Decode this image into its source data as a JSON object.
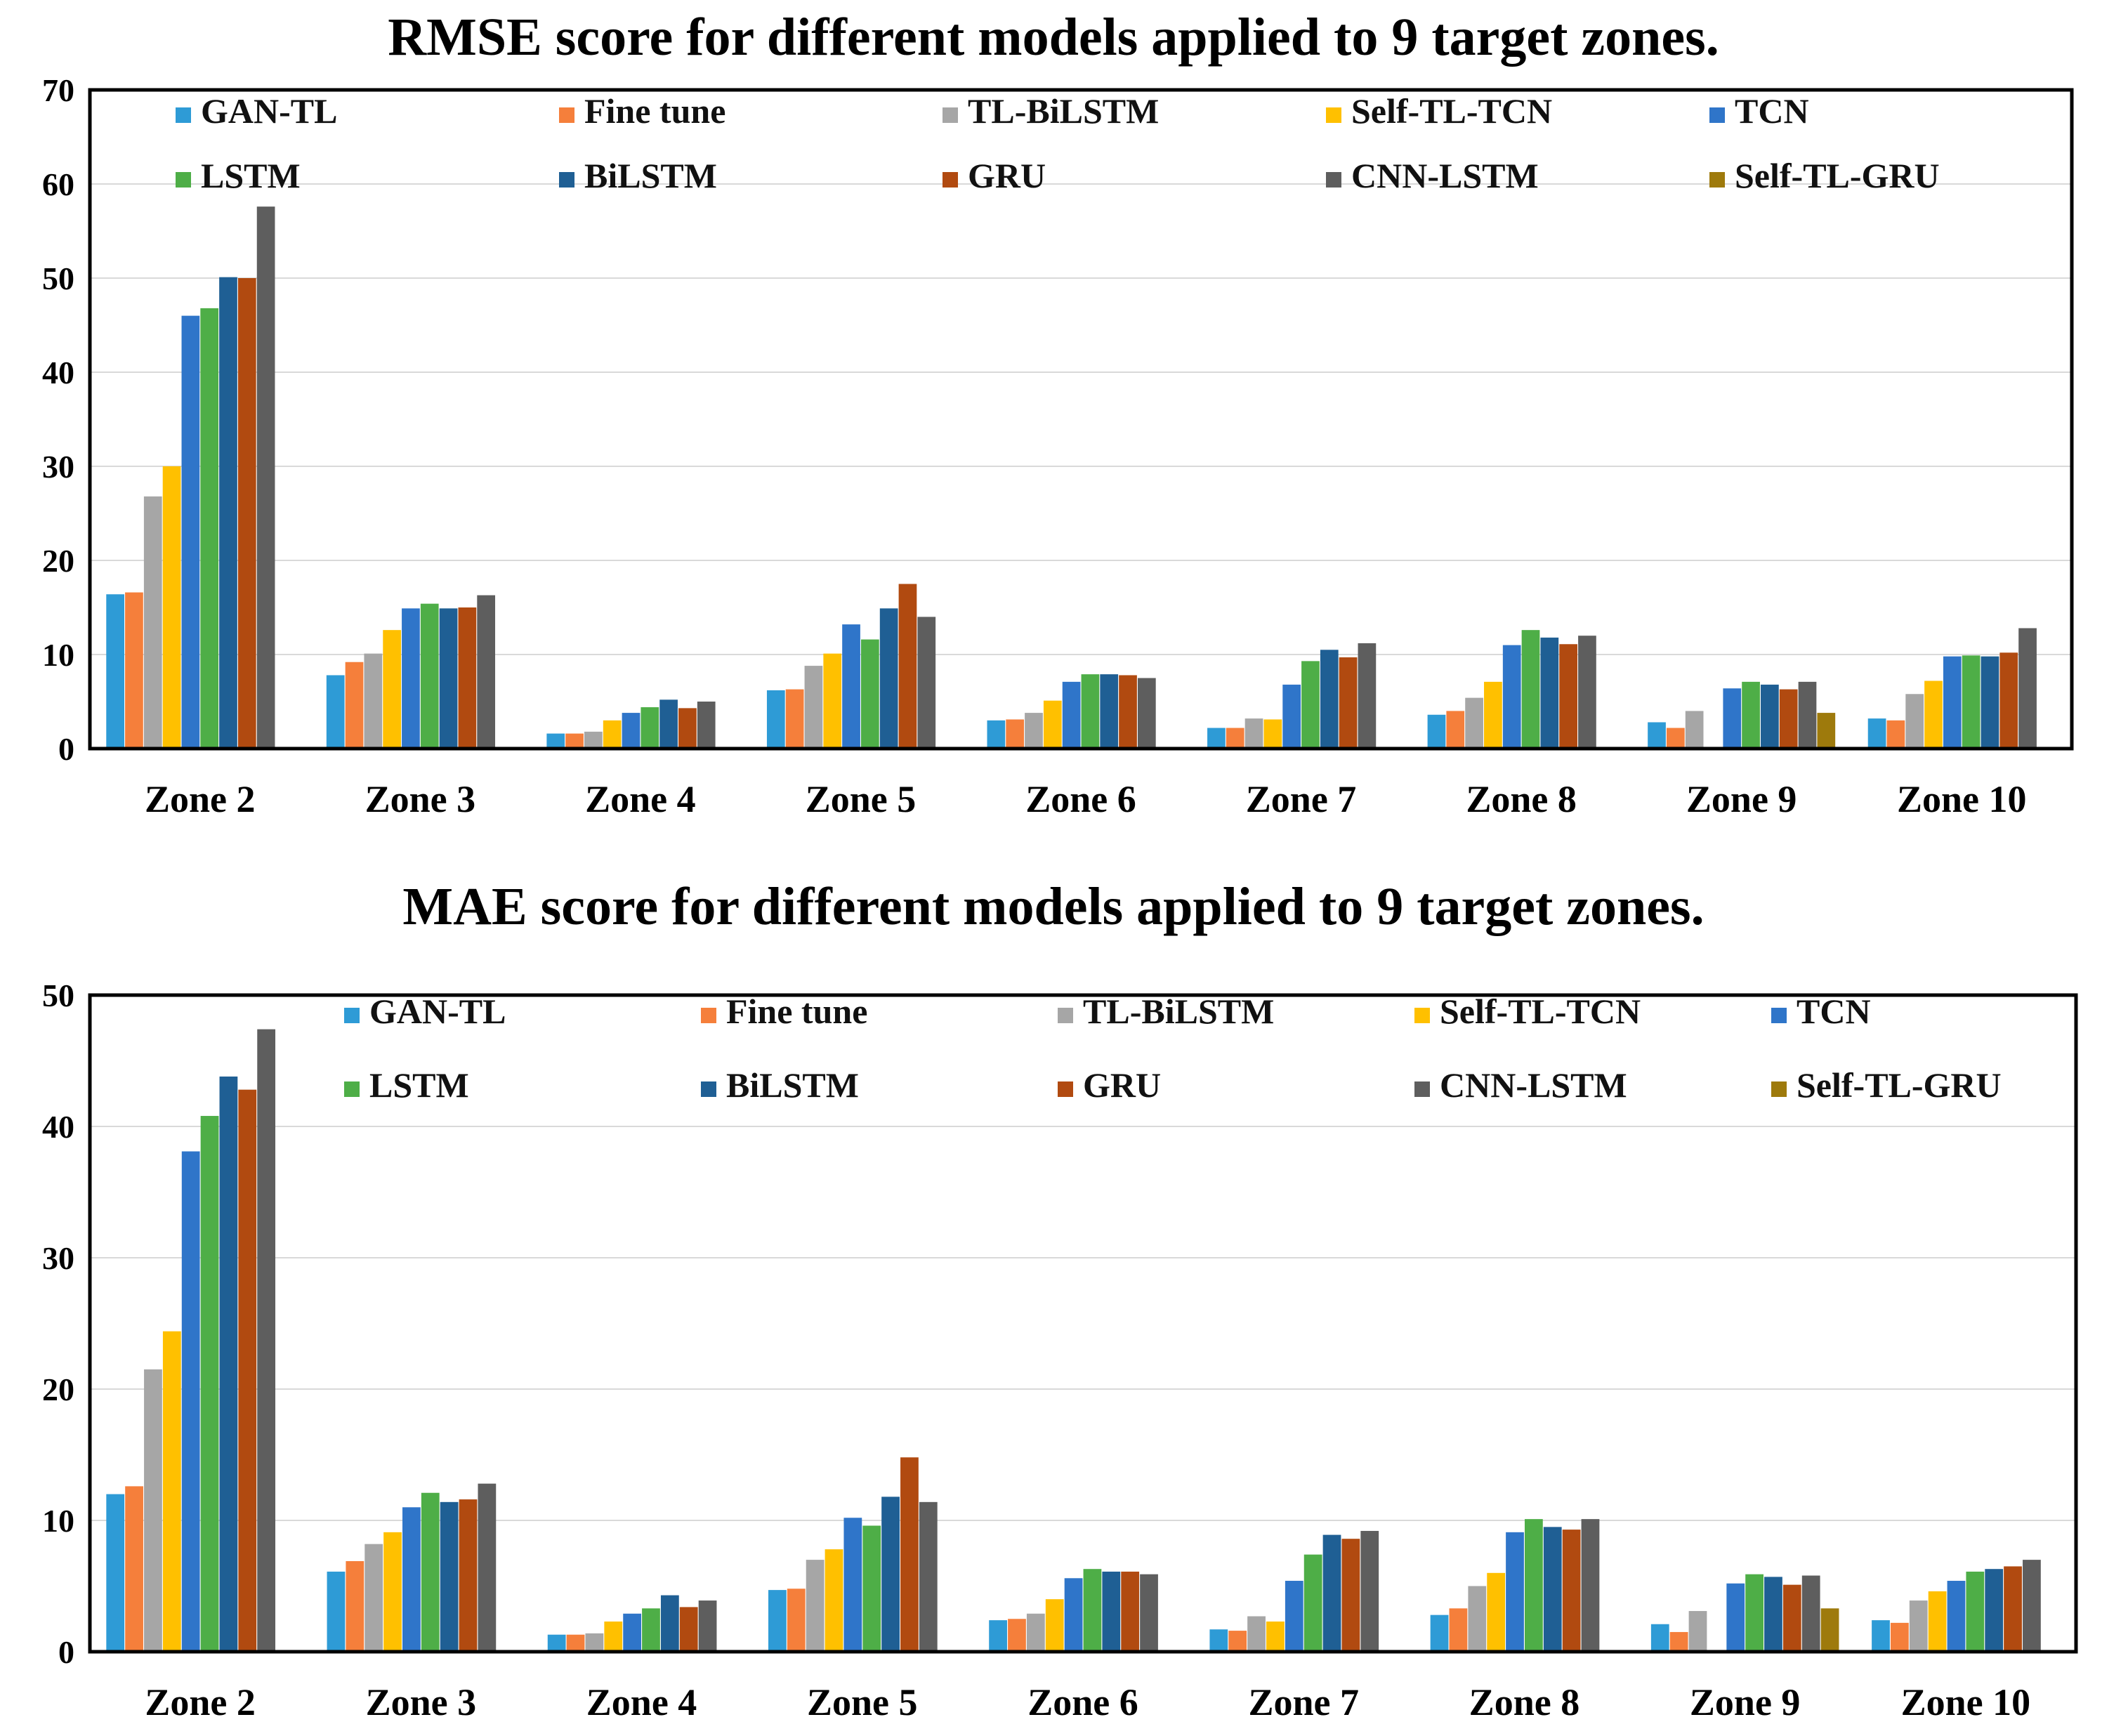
{
  "chart_data": [
    {
      "type": "bar",
      "title": "RMSE score for different models applied to 9 target zones.",
      "xlabel": "",
      "ylabel": "",
      "ylim": [
        0,
        70
      ],
      "yticks": [
        0,
        10,
        20,
        30,
        40,
        50,
        60,
        70
      ],
      "grid": true,
      "legend_position": "top (inside plot, 2 rows)",
      "categories": [
        "Zone 2",
        "Zone 3",
        "Zone 4",
        "Zone 5",
        "Zone 6",
        "Zone 7",
        "Zone 8",
        "Zone 9",
        "Zone 10"
      ],
      "series": [
        {
          "name": "GAN-TL",
          "color": "#2E9BD6",
          "values": [
            16.4,
            7.8,
            1.6,
            6.2,
            3.0,
            2.2,
            3.6,
            2.8,
            3.2
          ]
        },
        {
          "name": "Fine tune",
          "color": "#F57F3B",
          "values": [
            16.6,
            9.2,
            1.6,
            6.3,
            3.1,
            2.2,
            4.0,
            2.2,
            3.0
          ]
        },
        {
          "name": "TL-BiLSTM",
          "color": "#A6A6A6",
          "values": [
            26.8,
            10.1,
            1.8,
            8.8,
            3.8,
            3.2,
            5.4,
            4.0,
            5.8
          ]
        },
        {
          "name": "Self-TL-TCN",
          "color": "#FFC000",
          "values": [
            30.0,
            12.6,
            3.0,
            10.1,
            5.1,
            3.1,
            7.1,
            0,
            7.2
          ]
        },
        {
          "name": "TCN",
          "color": "#2F75C9",
          "values": [
            46.0,
            14.9,
            3.8,
            13.2,
            7.1,
            6.8,
            11.0,
            6.4,
            9.8
          ]
        },
        {
          "name": "LSTM",
          "color": "#4EAE47",
          "values": [
            46.8,
            15.4,
            4.4,
            11.6,
            7.9,
            9.3,
            12.6,
            7.1,
            9.9
          ]
        },
        {
          "name": "BiLSTM",
          "color": "#1F5F94",
          "values": [
            50.1,
            14.9,
            5.2,
            14.9,
            7.9,
            10.5,
            11.8,
            6.8,
            9.8
          ]
        },
        {
          "name": "GRU",
          "color": "#B14A10",
          "values": [
            50.0,
            15.0,
            4.3,
            17.5,
            7.8,
            9.7,
            11.1,
            6.3,
            10.2
          ]
        },
        {
          "name": "CNN-LSTM",
          "color": "#5E5E5E",
          "values": [
            57.6,
            16.3,
            5.0,
            14.0,
            7.5,
            11.2,
            12.0,
            7.1,
            12.8
          ]
        },
        {
          "name": "Self-TL-GRU",
          "color": "#9E7A0C",
          "values": [
            0,
            0,
            0,
            0,
            0,
            0,
            0,
            3.8,
            0
          ]
        }
      ]
    },
    {
      "type": "bar",
      "title": "MAE score for different models applied to 9 target zones.",
      "xlabel": "",
      "ylabel": "",
      "ylim": [
        0,
        50
      ],
      "yticks": [
        0,
        10,
        20,
        30,
        40,
        50
      ],
      "grid": true,
      "legend_position": "top (inside plot, 2 rows)",
      "categories": [
        "Zone 2",
        "Zone 3",
        "Zone 4",
        "Zone 5",
        "Zone 6",
        "Zone 7",
        "Zone 8",
        "Zone 9",
        "Zone 10"
      ],
      "series": [
        {
          "name": "GAN-TL",
          "color": "#2E9BD6",
          "values": [
            12.0,
            6.1,
            1.3,
            4.7,
            2.4,
            1.7,
            2.8,
            2.1,
            2.4
          ]
        },
        {
          "name": "Fine tune",
          "color": "#F57F3B",
          "values": [
            12.6,
            6.9,
            1.3,
            4.8,
            2.5,
            1.6,
            3.3,
            1.5,
            2.2
          ]
        },
        {
          "name": "TL-BiLSTM",
          "color": "#A6A6A6",
          "values": [
            21.5,
            8.2,
            1.4,
            7.0,
            2.9,
            2.7,
            5.0,
            3.1,
            3.9
          ]
        },
        {
          "name": "Self-TL-TCN",
          "color": "#FFC000",
          "values": [
            24.4,
            9.1,
            2.3,
            7.8,
            4.0,
            2.3,
            6.0,
            0,
            4.6
          ]
        },
        {
          "name": "TCN",
          "color": "#2F75C9",
          "values": [
            38.1,
            11.0,
            2.9,
            10.2,
            5.6,
            5.4,
            9.1,
            5.2,
            5.4
          ]
        },
        {
          "name": "LSTM",
          "color": "#4EAE47",
          "values": [
            40.8,
            12.1,
            3.3,
            9.6,
            6.3,
            7.4,
            10.1,
            5.9,
            6.1
          ]
        },
        {
          "name": "BiLSTM",
          "color": "#1F5F94",
          "values": [
            43.8,
            11.4,
            4.3,
            11.8,
            6.1,
            8.9,
            9.5,
            5.7,
            6.3
          ]
        },
        {
          "name": "GRU",
          "color": "#B14A10",
          "values": [
            42.8,
            11.6,
            3.4,
            14.8,
            6.1,
            8.6,
            9.3,
            5.1,
            6.5
          ]
        },
        {
          "name": "CNN-LSTM",
          "color": "#5E5E5E",
          "values": [
            47.4,
            12.8,
            3.9,
            11.4,
            5.9,
            9.2,
            10.1,
            5.8,
            7.0
          ]
        },
        {
          "name": "Self-TL-GRU",
          "color": "#9E7A0C",
          "values": [
            0,
            0,
            0,
            0,
            0,
            0,
            0,
            3.3,
            0
          ]
        }
      ]
    }
  ]
}
